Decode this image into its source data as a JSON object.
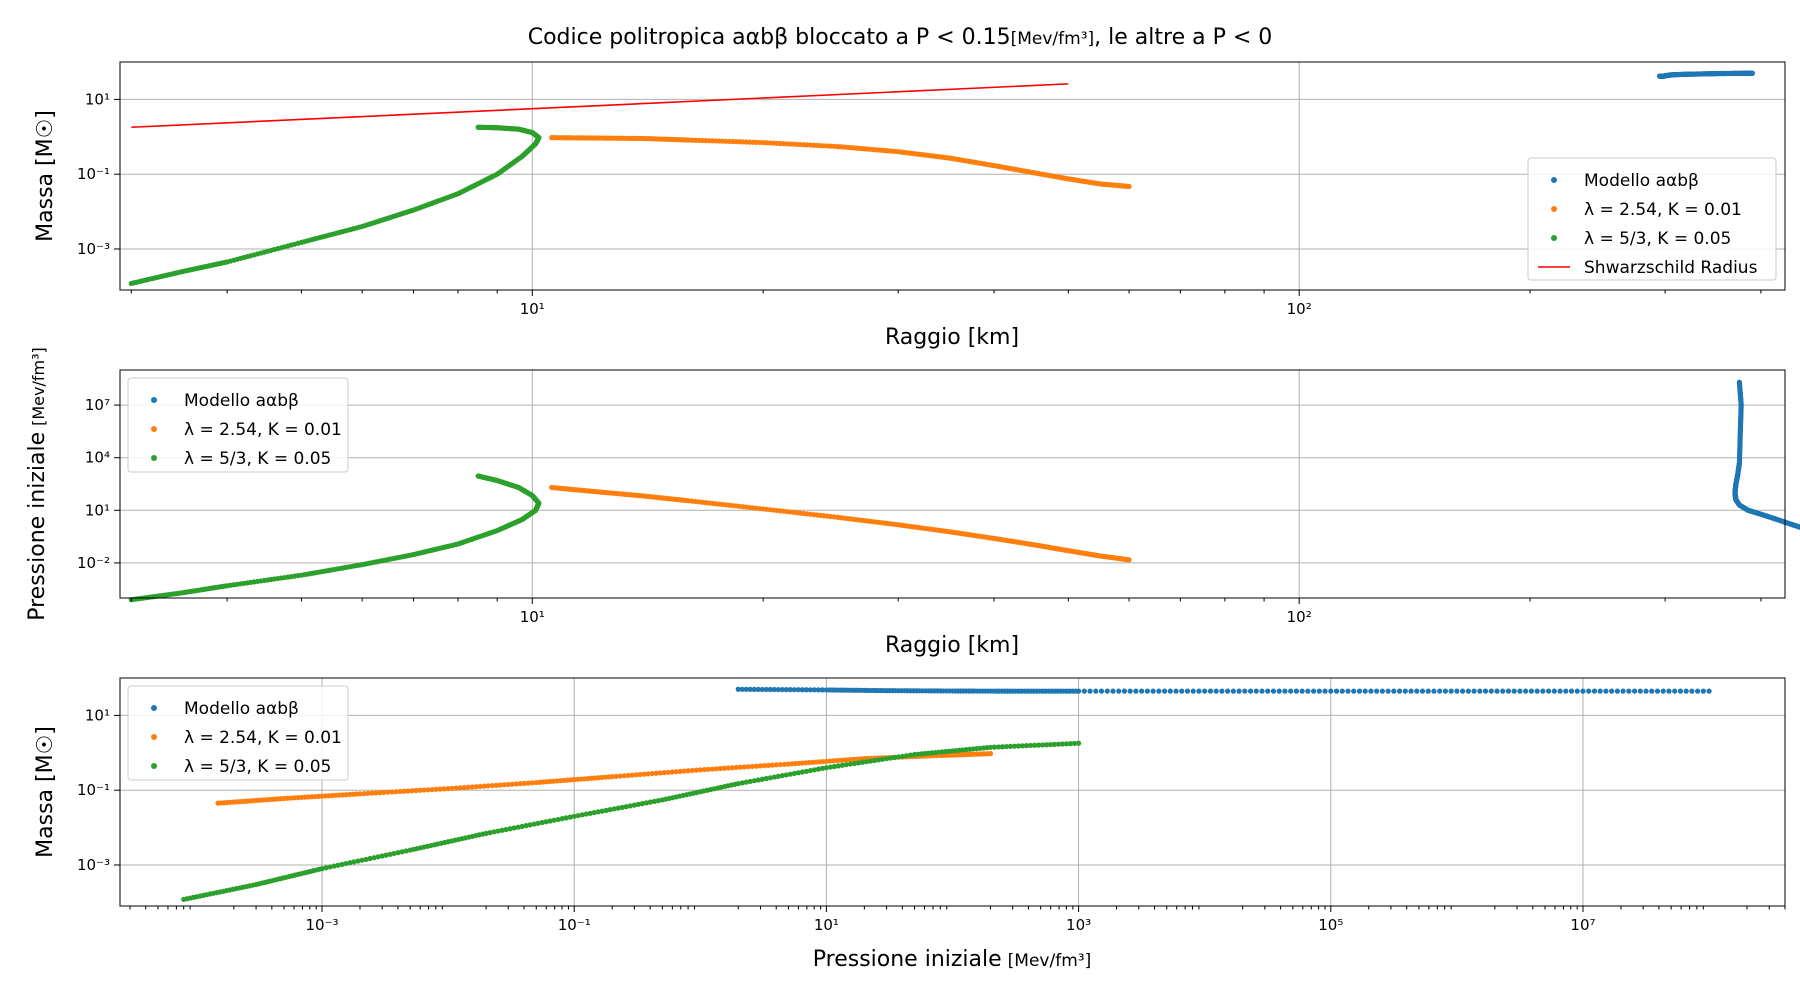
{
  "figure": {
    "title_main": "Codice politropica aαbβ bloccato a P < 0.15",
    "title_unit": "[Mev/fm³]",
    "title_tail": ", le altre a P < 0"
  },
  "colors": {
    "model": "#1f77b4",
    "poly_254": "#ff7f0e",
    "poly_53": "#2ca02c",
    "schwarzschild": "#ff0000",
    "grid": "#b0b0b0"
  },
  "chart_data": [
    {
      "type": "scatter",
      "id": "mass-radius",
      "xlabel": "Raggio [km]",
      "ylabel": "Massa [M☉]",
      "xscale": "log",
      "yscale": "log",
      "xlim": [
        2.9,
        430
      ],
      "ylim": [
        8e-05,
        100
      ],
      "xticks": [
        10,
        100
      ],
      "xtick_labels": [
        "10¹",
        "10²"
      ],
      "yticks": [
        0.001,
        0.1,
        10
      ],
      "ytick_labels": [
        "10⁻³",
        "10⁻¹",
        "10¹"
      ],
      "grid": true,
      "legend_position": "right",
      "series": [
        {
          "name": "Modello aαbβ",
          "style": "dots",
          "color_key": "model",
          "x": [
            295,
            298,
            300,
            303,
            305,
            310,
            320,
            335,
            350,
            365,
            380,
            390
          ],
          "y": [
            42,
            41,
            43,
            44,
            45,
            46,
            47,
            48,
            49,
            49.5,
            50,
            50
          ]
        },
        {
          "name": "λ = 2.54, K = 0.01",
          "style": "dots",
          "color_key": "poly_254",
          "x": [
            10.6,
            12,
            14,
            16,
            20,
            25,
            30,
            35,
            40,
            45,
            50,
            55,
            60
          ],
          "y": [
            0.95,
            0.93,
            0.9,
            0.82,
            0.7,
            0.55,
            0.4,
            0.27,
            0.17,
            0.11,
            0.075,
            0.055,
            0.047
          ]
        },
        {
          "name": "λ = 5/3, K = 0.05",
          "style": "dots",
          "color_key": "poly_53",
          "x": [
            3.0,
            3.5,
            4.0,
            5.0,
            6.0,
            7.0,
            8.0,
            9.0,
            9.7,
            10.1,
            10.2,
            10.0,
            9.6,
            9.0,
            8.5
          ],
          "y": [
            0.00012,
            0.00025,
            0.00045,
            0.0015,
            0.004,
            0.011,
            0.03,
            0.1,
            0.3,
            0.65,
            0.95,
            1.3,
            1.6,
            1.75,
            1.8
          ]
        },
        {
          "name": "Shwarzschild Radius",
          "style": "line",
          "color_key": "schwarzschild",
          "x": [
            3.0,
            50.0
          ],
          "y": [
            1.8,
            26
          ]
        }
      ]
    },
    {
      "type": "scatter",
      "id": "pressure-radius",
      "xlabel": "Raggio [km]",
      "ylabel_main": "Pressione iniziale",
      "ylabel_unit": "[Mev/fm³]",
      "xscale": "log",
      "yscale": "log",
      "xlim": [
        2.9,
        430
      ],
      "ylim": [
        0.0001,
        1000000000
      ],
      "xticks": [
        10,
        100
      ],
      "xtick_labels": [
        "10¹",
        "10²"
      ],
      "yticks": [
        0.01,
        10,
        10000,
        10000000
      ],
      "ytick_labels": [
        "10⁻²",
        "10¹",
        "10⁴",
        "10⁷"
      ],
      "grid": true,
      "legend_position": "upper left",
      "series": [
        {
          "name": "Modello aαbβ",
          "style": "dots",
          "color_key": "model",
          "x": [
            375,
            377,
            376,
            375,
            373,
            371,
            370,
            371,
            375,
            385,
            400,
            420,
            440,
            460,
            480,
            500
          ],
          "y": [
            200000000,
            10000000,
            300000,
            5000,
            1000,
            300,
            100,
            40,
            20,
            10,
            6,
            3,
            1.5,
            0.8,
            0.45,
            0.25
          ]
        },
        {
          "name": "λ = 2.54, K = 0.01",
          "style": "dots",
          "color_key": "poly_254",
          "x": [
            10.6,
            12,
            14,
            16,
            20,
            25,
            30,
            35,
            40,
            45,
            50,
            55,
            60
          ],
          "y": [
            200,
            120,
            65,
            35,
            12,
            4,
            1.5,
            0.6,
            0.25,
            0.11,
            0.05,
            0.025,
            0.015
          ]
        },
        {
          "name": "λ = 5/3, K = 0.05",
          "style": "dots",
          "color_key": "poly_53",
          "x": [
            3.0,
            3.5,
            4.0,
            5.0,
            6.0,
            7.0,
            8.0,
            9.0,
            9.7,
            10.1,
            10.2,
            10.0,
            9.6,
            9.0,
            8.5
          ],
          "y": [
            8e-05,
            0.0002,
            0.0005,
            0.002,
            0.008,
            0.03,
            0.12,
            0.7,
            3,
            10,
            25,
            70,
            200,
            500,
            900
          ]
        }
      ]
    },
    {
      "type": "scatter",
      "id": "mass-pressure",
      "xlabel_main": "Pressione iniziale",
      "xlabel_unit": "[Mev/fm³]",
      "ylabel": "Massa [M☉]",
      "xscale": "log",
      "yscale": "log",
      "xlim": [
        2.5e-05,
        400000000
      ],
      "ylim": [
        8e-05,
        100
      ],
      "xticks": [
        0.001,
        0.1,
        10,
        1000,
        100000,
        10000000
      ],
      "xtick_labels": [
        "10⁻³",
        "10⁻¹",
        "10¹",
        "10³",
        "10⁵",
        "10⁷"
      ],
      "yticks": [
        0.001,
        0.1,
        10
      ],
      "ytick_labels": [
        "10⁻³",
        "10⁻¹",
        "10¹"
      ],
      "grid": true,
      "legend_position": "upper left",
      "series": [
        {
          "name": "Modello aαbβ",
          "style": "dots",
          "color_key": "model",
          "x": [
            2,
            10,
            30,
            100,
            300,
            1000,
            10000,
            100000,
            1000000,
            10000000,
            100000000
          ],
          "y": [
            50,
            48,
            46,
            45,
            44.5,
            44.5,
            44.5,
            44.5,
            44.5,
            44.5,
            44.5
          ]
        },
        {
          "name": "λ = 2.54, K = 0.01",
          "style": "dots",
          "color_key": "poly_254",
          "x": [
            0.00015,
            0.0005,
            0.002,
            0.01,
            0.05,
            0.2,
            1,
            5,
            20,
            80,
            200
          ],
          "y": [
            0.045,
            0.06,
            0.08,
            0.11,
            0.16,
            0.23,
            0.35,
            0.5,
            0.7,
            0.85,
            0.95
          ]
        },
        {
          "name": "λ = 5/3, K = 0.05",
          "style": "dots",
          "color_key": "poly_53",
          "x": [
            8e-05,
            0.0003,
            0.001,
            0.005,
            0.02,
            0.1,
            0.5,
            2,
            10,
            50,
            200,
            1000
          ],
          "y": [
            0.00012,
            0.0003,
            0.0008,
            0.0025,
            0.007,
            0.02,
            0.055,
            0.15,
            0.4,
            0.9,
            1.4,
            1.8
          ]
        }
      ]
    }
  ]
}
